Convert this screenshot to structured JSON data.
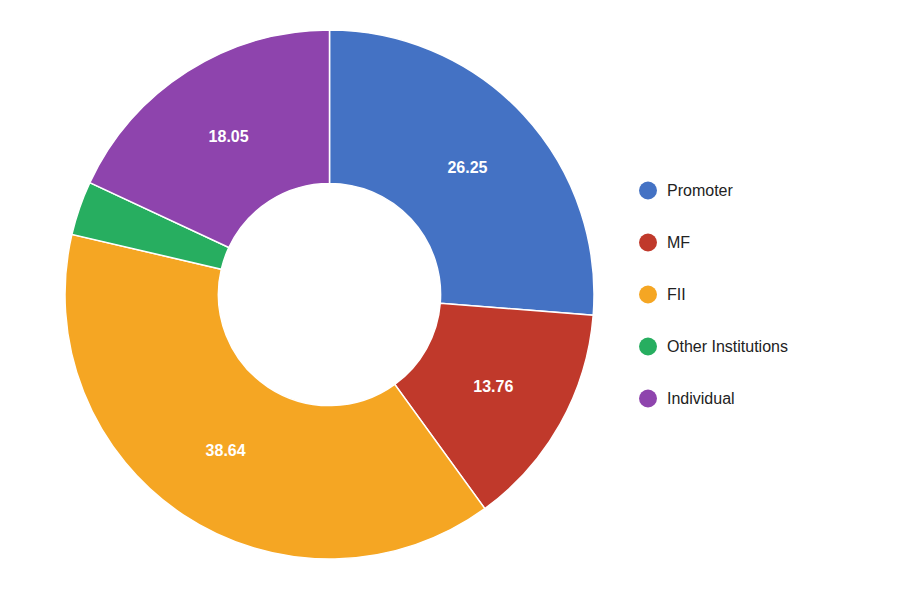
{
  "chart_data": {
    "type": "donut",
    "categories": [
      "Promoter",
      "MF",
      "FII",
      "Other Institutions",
      "Individual"
    ],
    "values": [
      26.25,
      13.76,
      38.64,
      3.3,
      18.05
    ],
    "colors": [
      "#4472C4",
      "#C0392B",
      "#F5A623",
      "#27AE60",
      "#8E44AD"
    ],
    "data_labels": true,
    "value_labels": [
      "26.25",
      "13.76",
      "38.64",
      null,
      "18.05"
    ],
    "legend": "right"
  }
}
